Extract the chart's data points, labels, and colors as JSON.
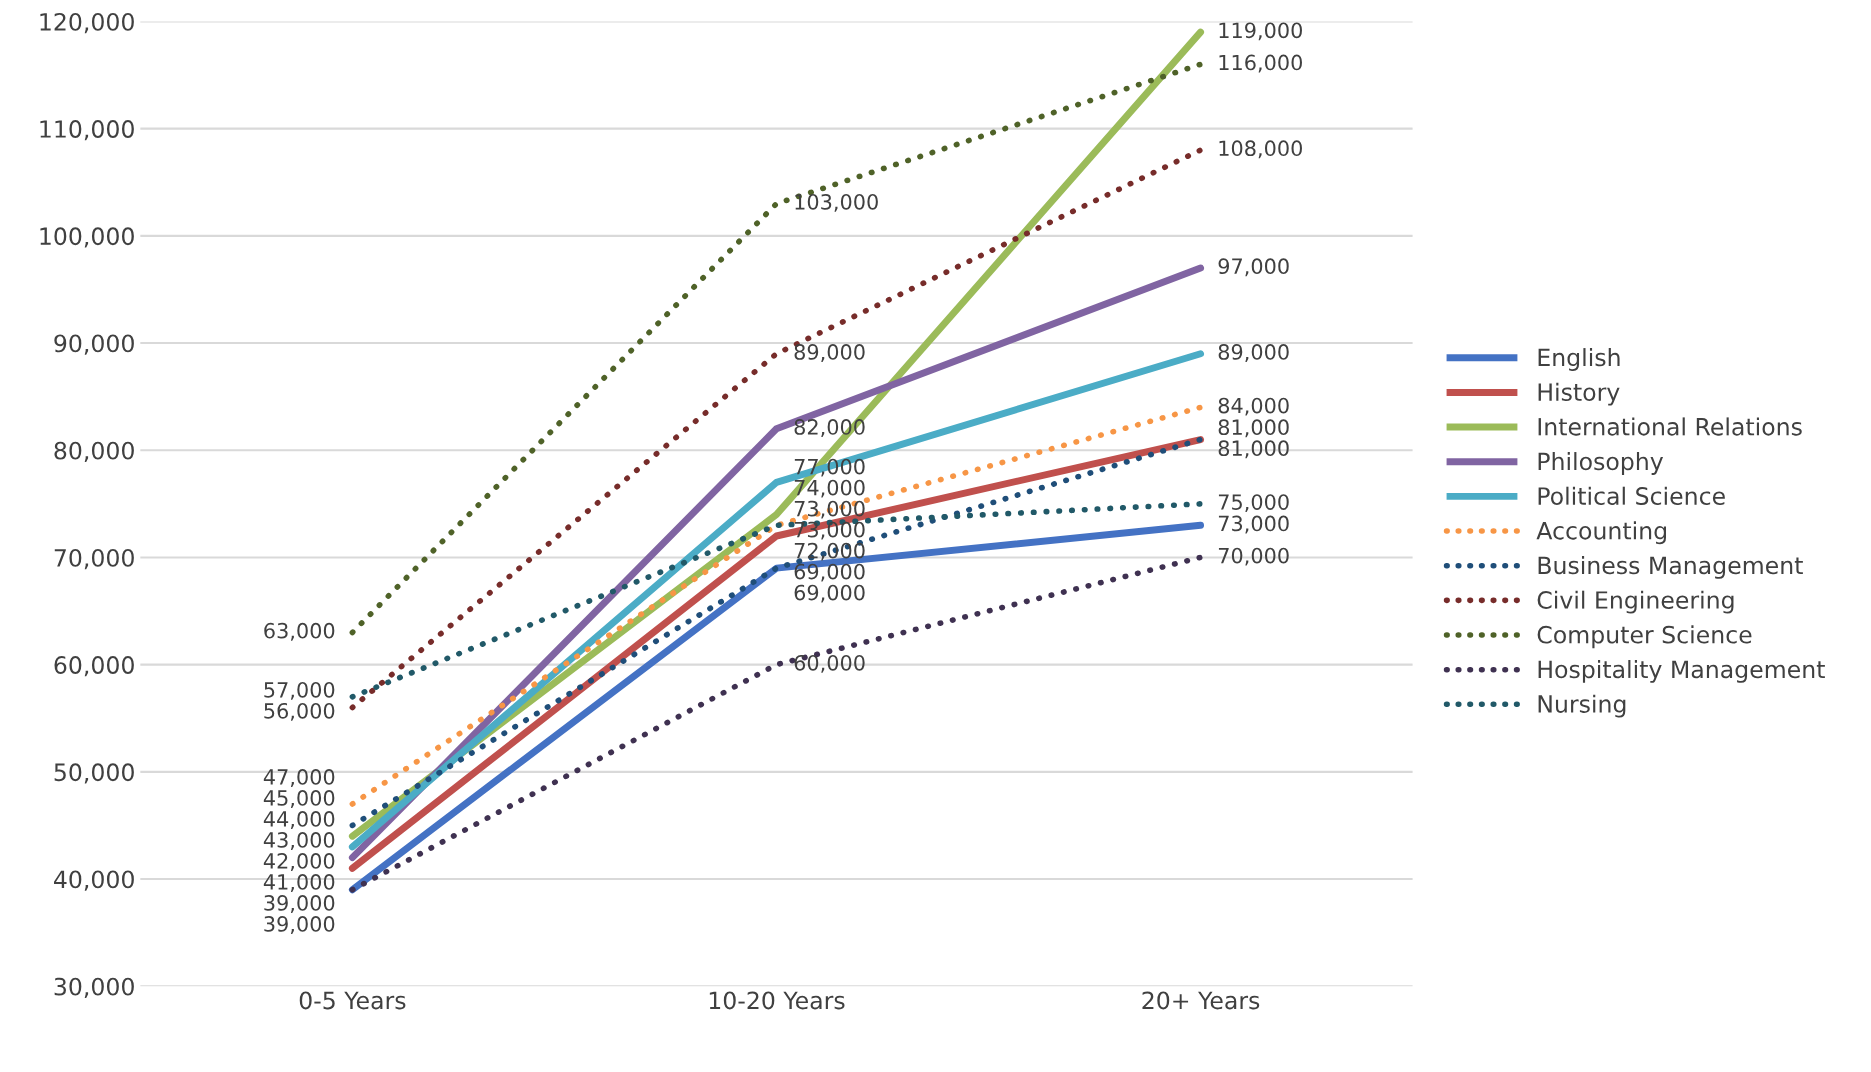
{
  "chart_data": {
    "type": "line",
    "categories": [
      "0-5 Years",
      "10-20 Years",
      "20+ Years"
    ],
    "series": [
      {
        "name": "English",
        "color": "#4472c4",
        "line_style": "solid",
        "values": [
          39000,
          69000,
          73000
        ],
        "value_labels": [
          "39,000",
          "69,000",
          "73,000"
        ]
      },
      {
        "name": "History",
        "color": "#c0504d",
        "line_style": "solid",
        "values": [
          41000,
          72000,
          81000
        ],
        "value_labels": [
          "41,000",
          "72,000",
          "81,000"
        ]
      },
      {
        "name": "International Relations",
        "color": "#9bbb59",
        "line_style": "solid",
        "values": [
          44000,
          74000,
          119000
        ],
        "value_labels": [
          "44,000",
          "74,000",
          "119,000"
        ]
      },
      {
        "name": "Philosophy",
        "color": "#8064a2",
        "line_style": "solid",
        "values": [
          42000,
          82000,
          97000
        ],
        "value_labels": [
          "42,000",
          "82,000",
          "97,000"
        ]
      },
      {
        "name": "Political Science",
        "color": "#4bacc6",
        "line_style": "solid",
        "values": [
          43000,
          77000,
          89000
        ],
        "value_labels": [
          "43,000",
          "77,000",
          "89,000"
        ]
      },
      {
        "name": "Accounting",
        "color": "#f79646",
        "line_style": "dotted",
        "values": [
          47000,
          73000,
          84000
        ],
        "value_labels": [
          "47,000",
          "73,000",
          "84,000"
        ]
      },
      {
        "name": "Business Management",
        "color": "#1f4e79",
        "line_style": "dotted",
        "values": [
          45000,
          69000,
          81000
        ],
        "value_labels": [
          "45,000",
          "69,000",
          "81,000"
        ]
      },
      {
        "name": "Civil Engineering",
        "color": "#772c2a",
        "line_style": "dotted",
        "values": [
          56000,
          89000,
          108000
        ],
        "value_labels": [
          "56,000",
          "89,000",
          "108,000"
        ]
      },
      {
        "name": "Computer Science",
        "color": "#4f6228",
        "line_style": "dotted",
        "values": [
          63000,
          103000,
          116000
        ],
        "value_labels": [
          "63,000",
          "103,000",
          "116,000"
        ]
      },
      {
        "name": "Hospitality Management",
        "color": "#3f3151",
        "line_style": "dotted",
        "values": [
          39000,
          60000,
          70000
        ],
        "value_labels": [
          "39,000",
          "60,000",
          "70,000"
        ]
      },
      {
        "name": "Nursing",
        "color": "#215968",
        "line_style": "dotted",
        "values": [
          57000,
          73000,
          75000
        ],
        "value_labels": [
          "57,000",
          "73,000",
          "75,000"
        ]
      }
    ],
    "ylim": [
      30000,
      120000
    ],
    "yticks": [
      {
        "value": 30000,
        "label": "30,000"
      },
      {
        "value": 40000,
        "label": "40,000"
      },
      {
        "value": 50000,
        "label": "50,000"
      },
      {
        "value": 60000,
        "label": "60,000"
      },
      {
        "value": 70000,
        "label": "70,000"
      },
      {
        "value": 80000,
        "label": "80,000"
      },
      {
        "value": 90000,
        "label": "90,000"
      },
      {
        "value": 100000,
        "label": "100,000"
      },
      {
        "value": 110000,
        "label": "110,000"
      },
      {
        "value": 120000,
        "label": "120,000"
      }
    ],
    "grid": "y",
    "legend": "right",
    "marker": "none"
  }
}
